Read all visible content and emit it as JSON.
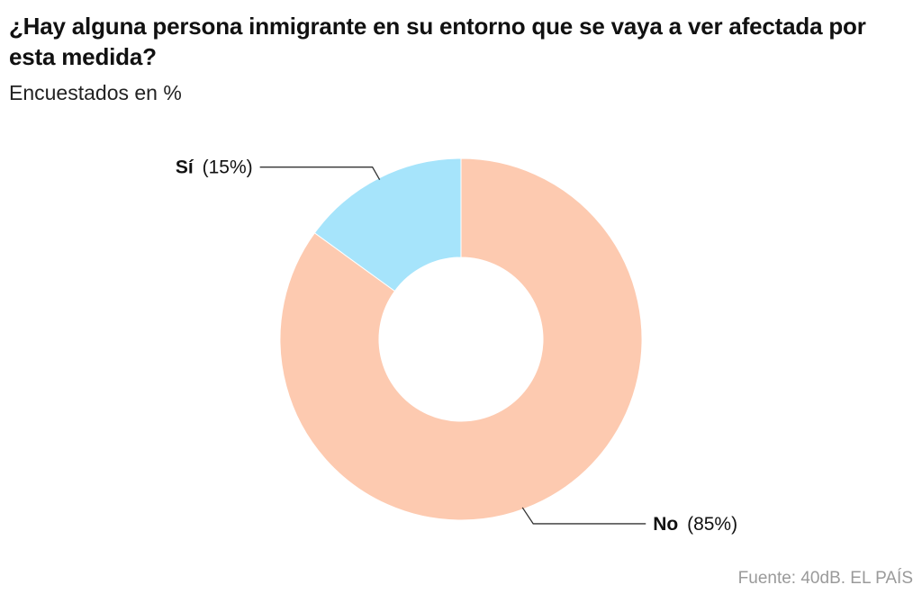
{
  "header": {
    "title": "¿Hay alguna persona inmigrante en su entorno que se vaya a ver afectada por esta medida?",
    "subtitle": "Encuestados en %"
  },
  "footer": {
    "source": "Fuente: 40dB. EL PAÍS"
  },
  "chart_data": {
    "type": "pie",
    "donut": true,
    "title": "¿Hay alguna persona inmigrante en su entorno que se vaya a ver afectada por esta medida?",
    "subtitle": "Encuestados en %",
    "categories": [
      "Sí",
      "No"
    ],
    "values": [
      15,
      85
    ],
    "value_labels": [
      "(15%)",
      "(85%)"
    ],
    "colors": [
      "#a6e4fb",
      "#fdcab0"
    ],
    "start_angle": "12 o'clock",
    "direction": "Sí counter-clockwise, No clockwise",
    "legend": "none",
    "source": "Fuente: 40dB. EL PAÍS"
  }
}
